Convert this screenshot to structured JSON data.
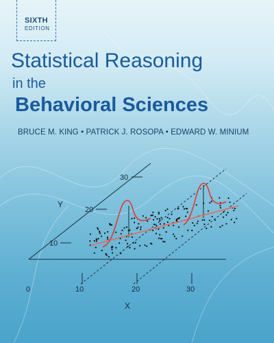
{
  "cover": {
    "edition_line1": "SIXTH",
    "edition_line2": "EDITION",
    "title_line1": "Statistical Reasoning",
    "title_line2": "in the",
    "title_line3": "Behavioral Sciences",
    "authors": "BRUCE M. KING • PATRICK J. ROSOPA • EDWARD W. MINIUM"
  },
  "graphic": {
    "y_axis_title": "Y",
    "x_axis_title": "X",
    "y_ticks": [
      "10",
      "20",
      "30"
    ],
    "x_ticks": [
      "0",
      "10",
      "20",
      "30"
    ],
    "colors": {
      "curve": "#e23a2e",
      "regression_line": "#e86a5a",
      "axes": "#1a2a3a",
      "dots": "#111111"
    }
  }
}
